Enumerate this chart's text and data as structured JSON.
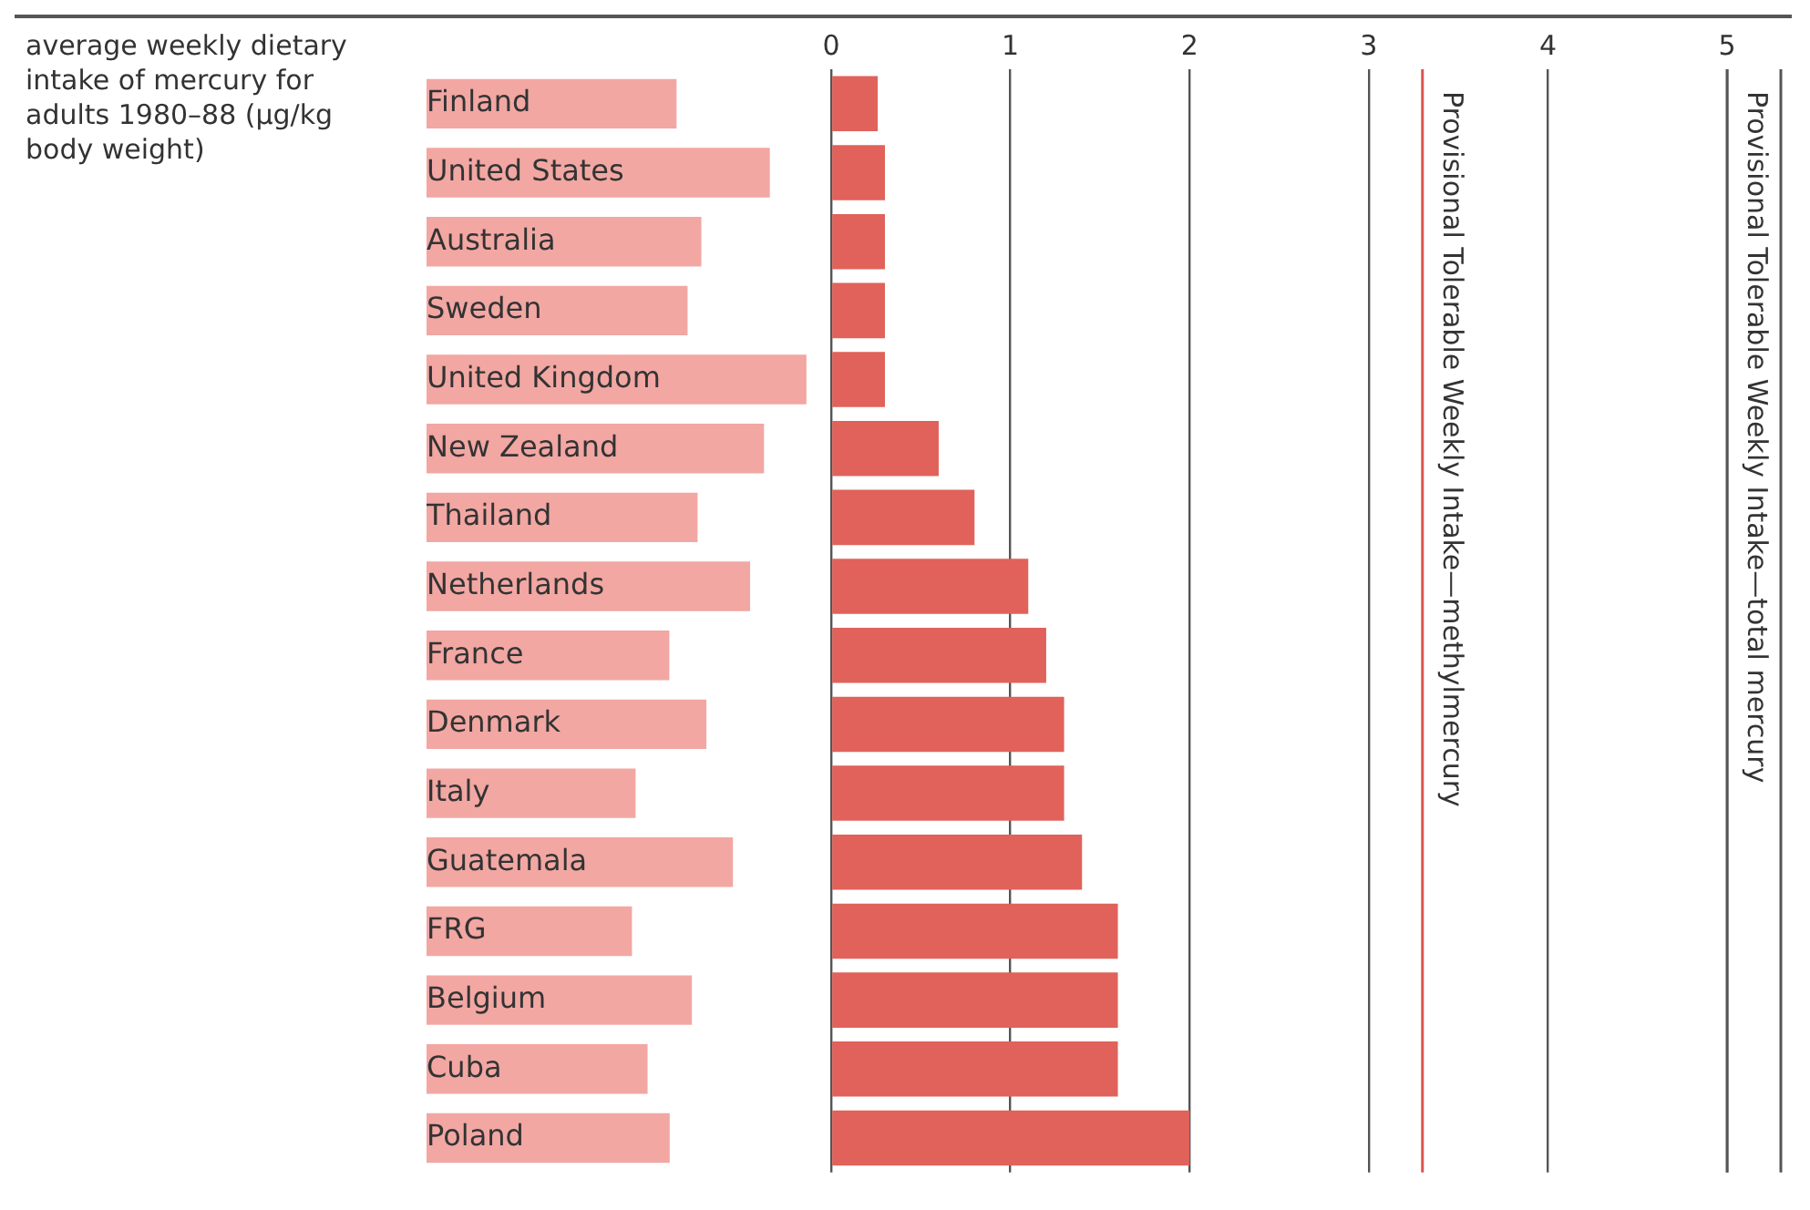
{
  "chart_data": {
    "type": "bar",
    "orientation": "horizontal",
    "title": "average weekly dietary intake of mercury for adults 1980–88 (µg/kg body weight)",
    "categories": [
      "Finland",
      "United States",
      "Australia",
      "Sweden",
      "United Kingdom",
      "New Zealand",
      "Thailand",
      "Netherlands",
      "France",
      "Denmark",
      "Italy",
      "Guatemala",
      "FRG",
      "Belgium",
      "Cuba",
      "Poland"
    ],
    "values": [
      0.26,
      0.3,
      0.3,
      0.3,
      0.3,
      0.6,
      0.8,
      1.1,
      1.2,
      1.3,
      1.3,
      1.4,
      1.6,
      1.6,
      1.6,
      2.0
    ],
    "color": "#e0625a",
    "xlim": [
      0,
      5.3
    ],
    "xticks": [
      0,
      1,
      2,
      3,
      4,
      5
    ],
    "grid": "x",
    "ref_lines": [
      {
        "axis": "x",
        "value": 3.3,
        "label": "Provisional Tolerable Weekly Intake—methylmercury",
        "color": "#d9534f"
      },
      {
        "axis": "x",
        "value": 5,
        "label": "Provisional Tolerable Weekly Intake—total mercury",
        "color": "#555555"
      }
    ]
  }
}
